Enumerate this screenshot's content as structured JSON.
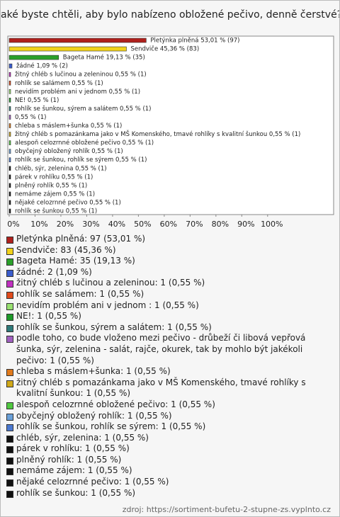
{
  "chart_data": {
    "type": "bar",
    "orientation": "horizontal",
    "title": "Jaké byste chtěli, aby bylo nabízeno obložené pečivo, denně čerstvé?",
    "values": [
      53.01,
      45.36,
      19.13,
      1.09,
      0.55,
      0.55,
      0.55,
      0.55,
      0.55,
      0.55,
      0.55,
      0.55,
      0.55,
      0.55,
      0.55,
      0.55,
      0.55,
      0.55,
      0.55,
      0.55,
      0.55
    ],
    "value_labels": [
      "Pletýnka plněná 53,01 % (97)",
      "Sendviče 45,36 % (83)",
      "Bageta Hamé 19,13 % (35)",
      "žádné 1,09 % (2)",
      "žitný chléb s lučinou a zeleninou 0,55 % (1)",
      "rohlík se salámem 0,55 % (1)",
      "nevidím problém ani v jednom 0,55 % (1)",
      "NE! 0,55 % (1)",
      "rohlík se šunkou, sýrem a salátem 0,55 % (1)",
      "0,55 % (1)",
      "chleba s máslem+šunka 0,55 % (1)",
      "žitný chléb s pomazánkama jako v MŠ Komenského, tmavé rohlíky s kvalitní šunkou 0,55 % (1)",
      "alespoň celozrnné obložené pečivo 0,55 % (1)",
      "obyčejný obložený rohlík 0,55 % (1)",
      "rohlík se šunkou, rohlík se sýrem 0,55 % (1)",
      "chléb, sýr, zelenina 0,55 % (1)",
      "párek v rohlíku 0,55 % (1)",
      "plněný rohlík 0,55 % (1)",
      "nemáme zájem 0,55 % (1)",
      "nějaké celozrnné pečivo 0,55 % (1)",
      "rohlík se šunkou 0,55 % (1)"
    ],
    "legend_labels": [
      "Pletýnka plněná: 97 (53,01 %)",
      "Sendviče: 83 (45,36 %)",
      "Bageta Hamé: 35 (19,13 %)",
      "žádné: 2 (1,09 %)",
      "žitný chléb s lučinou a zeleninou: 1 (0,55 %)",
      "rohlík se salámem: 1 (0,55 %)",
      "nevidím problém ani v jednom : 1 (0,55 %)",
      "NE!: 1 (0,55 %)",
      "rohlík se šunkou, sýrem a salátem: 1 (0,55 %)",
      "podle toho, co bude vloženo mezi pečivo - drůbeží či libová vepřová šunka, sýr, zelenina - salát, rajče, okurek, tak by mohlo být jakékoli pečivo: 1 (0,55 %)",
      "chleba s máslem+šunka: 1 (0,55 %)",
      "žitný chléb s pomazánkama jako v MŠ Komenského, tmavé rohlíky s kvalitní šunkou: 1 (0,55 %)",
      "alespoň celozrnné obložené pečivo: 1 (0,55 %)",
      "obyčejný obložený rohlík: 1 (0,55 %)",
      "rohlík se šunkou, rohlík se sýrem: 1 (0,55 %)",
      "chléb, sýr, zelenina: 1 (0,55 %)",
      "párek v rohlíku: 1 (0,55 %)",
      "plněný rohlík: 1 (0,55 %)",
      "nemáme zájem: 1 (0,55 %)",
      "nějaké celozrnné pečivo: 1 (0,55 %)",
      "rohlík se šunkou: 1 (0,55 %)"
    ],
    "colors": [
      "#b0201c",
      "#f2d21a",
      "#2aa02a",
      "#3a5ccc",
      "#c030c0",
      "#e04a1c",
      "#98e070",
      "#1e9a2a",
      "#2e7a7a",
      "#a060c0",
      "#e07a1c",
      "#d0a818",
      "#50c840",
      "#6aa0d8",
      "#4a78d0",
      "#111111",
      "#111111",
      "#111111",
      "#111111",
      "#111111",
      "#111111"
    ],
    "xlim": [
      0,
      125
    ],
    "xticks": [
      {
        "value": 0,
        "label": "0%"
      },
      {
        "value": 10,
        "label": "10%"
      },
      {
        "value": 20,
        "label": "20%"
      },
      {
        "value": 30,
        "label": "30%"
      },
      {
        "value": 40,
        "label": "40%"
      },
      {
        "value": 50,
        "label": "50%"
      },
      {
        "value": 60,
        "label": "60%"
      },
      {
        "value": 70,
        "label": "70%"
      },
      {
        "value": 80,
        "label": "80%"
      },
      {
        "value": 90,
        "label": "90%"
      },
      {
        "value": 100,
        "label": "100%"
      }
    ],
    "source": "zdroj: https://sortiment-bufetu-2-stupne-zs.vyplnto.cz"
  }
}
